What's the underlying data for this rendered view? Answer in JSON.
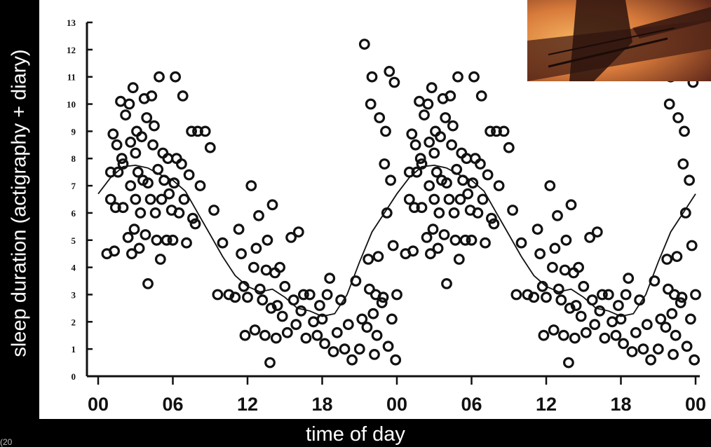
{
  "y_axis_label": "sleep duration (actigraphy + diary)",
  "x_axis_label": "time of day",
  "footnote": "(20",
  "chart_data": {
    "type": "scatter",
    "title": "",
    "xlabel": "time of day",
    "ylabel": "sleep duration (actigraphy + diary)",
    "xlim": [
      0,
      48
    ],
    "ylim": [
      0,
      13
    ],
    "x_ticks": [
      0,
      6,
      12,
      18,
      24,
      30,
      36,
      42,
      48
    ],
    "x_tick_labels": [
      "00",
      "06",
      "12",
      "18",
      "00",
      "06",
      "12",
      "18",
      "00"
    ],
    "y_ticks": [
      0,
      1,
      2,
      3,
      4,
      5,
      6,
      7,
      8,
      9,
      10,
      11,
      12,
      13
    ],
    "grid": false,
    "legend": "none",
    "series": [
      {
        "kind": "points",
        "color": "#111111",
        "points": [
          [
            0.7,
            4.5
          ],
          [
            1,
            6.5
          ],
          [
            1,
            7.5
          ],
          [
            1.2,
            8.9
          ],
          [
            1.3,
            4.6
          ],
          [
            1.4,
            6.2
          ],
          [
            1.5,
            8.5
          ],
          [
            1.6,
            7.5
          ],
          [
            1.8,
            10.1
          ],
          [
            1.9,
            8
          ],
          [
            2,
            7.8
          ],
          [
            2,
            6.2
          ],
          [
            2.2,
            9.6
          ],
          [
            2.4,
            5.1
          ],
          [
            2.5,
            10
          ],
          [
            2.6,
            7
          ],
          [
            2.6,
            8.6
          ],
          [
            2.7,
            4.5
          ],
          [
            2.8,
            10.6
          ],
          [
            2.9,
            5.4
          ],
          [
            3,
            6.5
          ],
          [
            3,
            8.2
          ],
          [
            3.1,
            9
          ],
          [
            3.2,
            7.5
          ],
          [
            3.3,
            4.7
          ],
          [
            3.4,
            6
          ],
          [
            3.5,
            8.8
          ],
          [
            3.6,
            7.2
          ],
          [
            3.7,
            10.2
          ],
          [
            3.8,
            5.2
          ],
          [
            3.9,
            9.5
          ],
          [
            4,
            3.4
          ],
          [
            4,
            7.1
          ],
          [
            4.2,
            6.5
          ],
          [
            4.3,
            10.3
          ],
          [
            4.4,
            8.5
          ],
          [
            4.5,
            9.2
          ],
          [
            4.6,
            6
          ],
          [
            4.7,
            5
          ],
          [
            4.8,
            7.6
          ],
          [
            4.9,
            11
          ],
          [
            5,
            4.3
          ],
          [
            5.1,
            6.5
          ],
          [
            5.2,
            8.2
          ],
          [
            5.3,
            7.2
          ],
          [
            5.5,
            5
          ],
          [
            5.6,
            8
          ],
          [
            5.7,
            6.7
          ],
          [
            5.9,
            6.1
          ],
          [
            6,
            5
          ],
          [
            6.1,
            7.1
          ],
          [
            6.2,
            11
          ],
          [
            6.3,
            8
          ],
          [
            6.5,
            6
          ],
          [
            6.7,
            7.8
          ],
          [
            6.8,
            10.3
          ],
          [
            6.9,
            6.5
          ],
          [
            7.1,
            4.9
          ],
          [
            7.3,
            7.4
          ],
          [
            7.5,
            9
          ],
          [
            7.6,
            5.8
          ],
          [
            7.8,
            5.6
          ],
          [
            8,
            9
          ],
          [
            8.2,
            7
          ],
          [
            8.6,
            9
          ],
          [
            9,
            8.4
          ],
          [
            9.3,
            6.1
          ],
          [
            9.6,
            3
          ],
          [
            10,
            4.9
          ],
          [
            10.5,
            3
          ],
          [
            11,
            2.9
          ],
          [
            11.3,
            5.4
          ],
          [
            11.5,
            4.5
          ],
          [
            11.7,
            3.3
          ],
          [
            11.8,
            1.5
          ],
          [
            12,
            2.9
          ],
          [
            12.3,
            7
          ],
          [
            12.5,
            4
          ],
          [
            12.6,
            1.7
          ],
          [
            12.7,
            4.7
          ],
          [
            12.9,
            5.9
          ],
          [
            13,
            3.2
          ],
          [
            13.2,
            2.8
          ],
          [
            13.4,
            1.5
          ],
          [
            13.5,
            3.9
          ],
          [
            13.6,
            5
          ],
          [
            13.8,
            0.5
          ],
          [
            13.9,
            2.5
          ],
          [
            14,
            6.3
          ],
          [
            14.2,
            3.8
          ],
          [
            14.3,
            1.4
          ],
          [
            14.4,
            2.6
          ],
          [
            14.6,
            4
          ],
          [
            14.8,
            2.2
          ],
          [
            15,
            3.3
          ],
          [
            15.2,
            1.6
          ],
          [
            15.5,
            5.1
          ],
          [
            15.7,
            2.8
          ],
          [
            15.9,
            1.9
          ],
          [
            16.1,
            5.3
          ],
          [
            16.3,
            2.4
          ],
          [
            16.5,
            3
          ],
          [
            16.7,
            1.4
          ],
          [
            17,
            3
          ],
          [
            17.3,
            2
          ],
          [
            17.6,
            1.5
          ],
          [
            17.8,
            2.6
          ],
          [
            18,
            2.1
          ],
          [
            18.2,
            1.2
          ],
          [
            18.4,
            3
          ],
          [
            18.6,
            3.6
          ],
          [
            18.9,
            0.9
          ],
          [
            19.2,
            1.6
          ],
          [
            19.5,
            2.8
          ],
          [
            19.8,
            1
          ],
          [
            20.1,
            1.9
          ],
          [
            20.4,
            0.6
          ],
          [
            20.7,
            3.5
          ],
          [
            21,
            1
          ],
          [
            21.2,
            2.1
          ],
          [
            21.4,
            12.2
          ],
          [
            21.6,
            1.8
          ],
          [
            21.7,
            4.3
          ],
          [
            21.8,
            3.2
          ],
          [
            21.9,
            10
          ],
          [
            22,
            11
          ],
          [
            22.1,
            2.3
          ],
          [
            22.2,
            0.8
          ],
          [
            22.3,
            3
          ],
          [
            22.4,
            1.5
          ],
          [
            22.5,
            4.4
          ],
          [
            22.6,
            9.5
          ],
          [
            22.8,
            2.7
          ],
          [
            22.9,
            2.9
          ],
          [
            23,
            7.8
          ],
          [
            23.1,
            9
          ],
          [
            23.2,
            6
          ],
          [
            23.3,
            1.1
          ],
          [
            23.4,
            11.2
          ],
          [
            23.5,
            7.2
          ],
          [
            23.6,
            2.1
          ],
          [
            23.7,
            4.8
          ],
          [
            23.8,
            10.8
          ],
          [
            23.9,
            0.6
          ],
          [
            24,
            3
          ]
        ]
      },
      {
        "kind": "trend-line",
        "color": "#111111",
        "x": [
          0,
          1,
          2,
          3,
          4,
          5,
          6,
          7,
          8,
          9,
          10,
          11,
          12,
          13,
          14,
          15,
          16,
          17,
          18,
          19,
          20,
          21,
          22,
          23,
          24,
          25,
          26,
          27,
          28,
          29,
          30,
          31,
          32,
          33,
          34,
          35,
          36,
          37,
          38,
          39,
          40,
          41,
          42,
          43,
          44,
          45,
          46,
          47,
          48
        ],
        "y": [
          6.7,
          7.3,
          7.7,
          7.75,
          7.65,
          7.4,
          7.2,
          6.8,
          6,
          5.2,
          4.4,
          3.7,
          3.3,
          3.1,
          3.2,
          2.9,
          2.5,
          2.4,
          2.2,
          2.3,
          3,
          4.2,
          5.3,
          6,
          6.7,
          7.3,
          7.7,
          7.75,
          7.65,
          7.4,
          7.2,
          6.8,
          6,
          5.2,
          4.4,
          3.7,
          3.3,
          3.1,
          3.2,
          2.9,
          2.5,
          2.4,
          2.2,
          2.3,
          3,
          4.2,
          5.3,
          6,
          6.7
        ]
      }
    ],
    "note": "Data is double-plotted: points at x+24 repeat points at x."
  }
}
